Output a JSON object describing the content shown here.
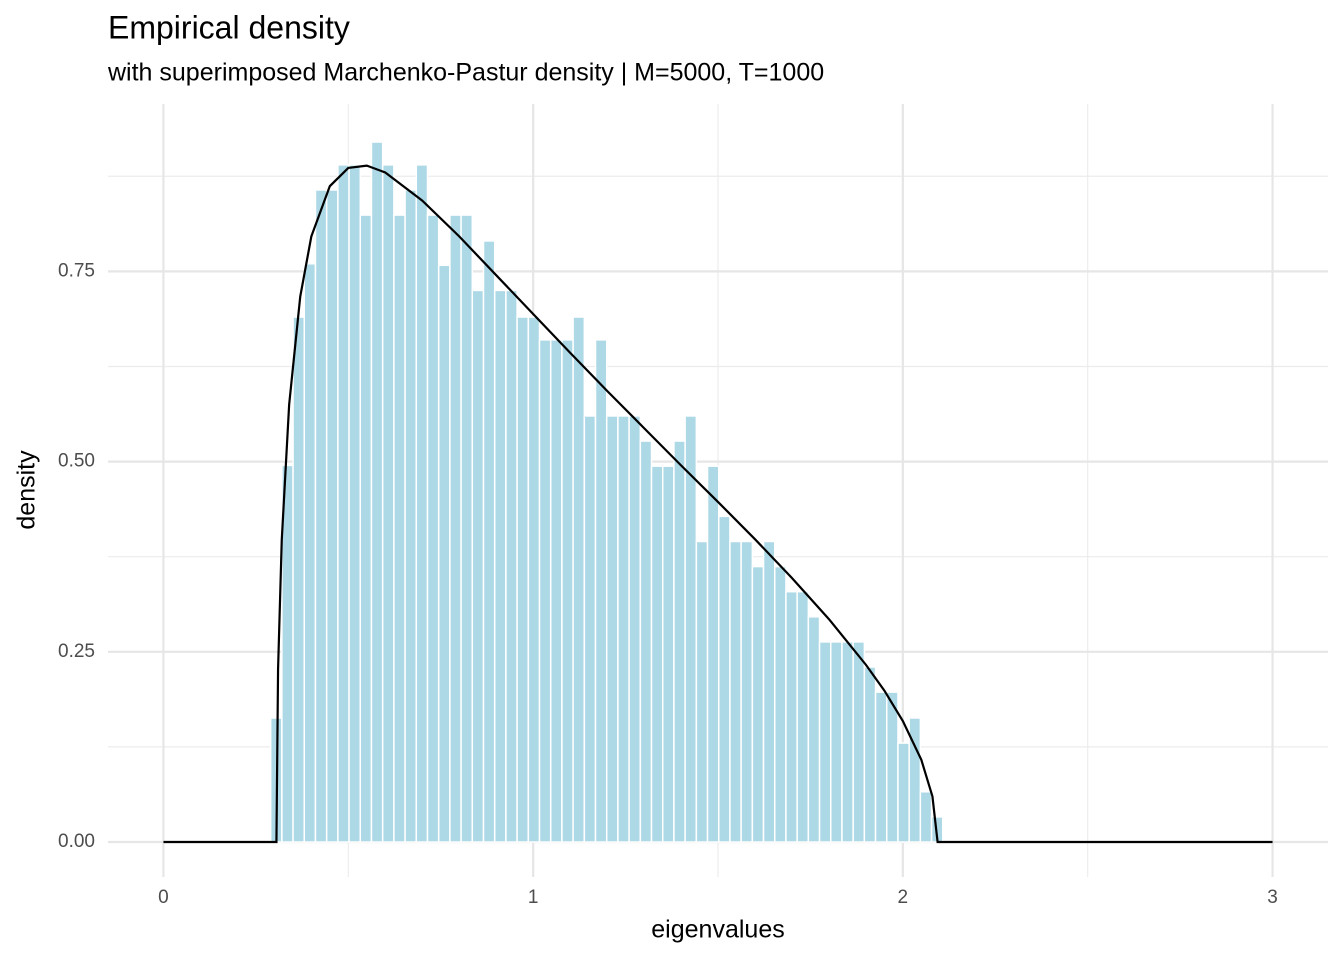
{
  "chart_data": {
    "type": "histogram",
    "title": "Empirical density",
    "subtitle": "with superimposed Marchenko-Pastur density | M=5000, T=1000",
    "x_label": "eigenvalues",
    "y_label": "density",
    "bins": [
      0.29,
      0.3203,
      0.3506,
      0.3809,
      0.4112,
      0.4415,
      0.4718,
      0.5021,
      0.5324,
      0.5627,
      0.593,
      0.6233,
      0.6536,
      0.6839,
      0.7142,
      0.7445,
      0.7748,
      0.8051,
      0.8354,
      0.8657,
      0.896,
      0.9263,
      0.9566,
      0.9869,
      1.0172,
      1.0475,
      1.0778,
      1.1081,
      1.1384,
      1.1687,
      1.199,
      1.2293,
      1.2596,
      1.2899,
      1.3202,
      1.3505,
      1.3808,
      1.4111,
      1.4414,
      1.4717,
      1.502,
      1.5323,
      1.5626,
      1.5929,
      1.6232,
      1.6535,
      1.6838,
      1.7141,
      1.7444,
      1.7747,
      1.805,
      1.8353,
      1.8656,
      1.8959,
      1.9262,
      1.9565,
      1.9868,
      2.0171,
      2.0474,
      2.0777,
      2.108
    ],
    "values": [
      0.163,
      0.495,
      0.69,
      0.76,
      0.857,
      0.857,
      0.89,
      0.89,
      0.824,
      0.92,
      0.89,
      0.824,
      0.857,
      0.89,
      0.824,
      0.758,
      0.824,
      0.824,
      0.725,
      0.79,
      0.725,
      0.725,
      0.69,
      0.69,
      0.66,
      0.66,
      0.66,
      0.69,
      0.56,
      0.66,
      0.56,
      0.56,
      0.56,
      0.527,
      0.494,
      0.494,
      0.527,
      0.56,
      0.395,
      0.494,
      0.428,
      0.395,
      0.395,
      0.362,
      0.395,
      0.362,
      0.329,
      0.329,
      0.296,
      0.263,
      0.263,
      0.263,
      0.263,
      0.23,
      0.197,
      0.197,
      0.13,
      0.163,
      0.066,
      0.033
    ],
    "color": "#add8e6",
    "overlay": {
      "type": "line",
      "color": "#000000",
      "x": [
        0,
        0.3056,
        0.31,
        0.32,
        0.34,
        0.37,
        0.4,
        0.45,
        0.5,
        0.55,
        0.6,
        0.7,
        0.8,
        0.9,
        1.0,
        1.1,
        1.2,
        1.3,
        1.4,
        1.5,
        1.6,
        1.7,
        1.8,
        1.9,
        1.95,
        2.0,
        2.05,
        2.08,
        2.094,
        3
      ],
      "values": [
        0,
        0,
        0.227,
        0.397,
        0.575,
        0.717,
        0.796,
        0.862,
        0.886,
        0.889,
        0.88,
        0.843,
        0.796,
        0.745,
        0.694,
        0.643,
        0.593,
        0.544,
        0.495,
        0.447,
        0.398,
        0.347,
        0.293,
        0.233,
        0.199,
        0.159,
        0.108,
        0.06,
        0,
        0
      ]
    },
    "xlim": [
      -0.15,
      3.15
    ],
    "ylim": [
      -0.046,
      0.97
    ],
    "xticks": [
      0,
      1,
      2,
      3
    ],
    "yticks": [
      {
        "value": 0,
        "label": "0.00"
      },
      {
        "value": 0.25,
        "label": "0.25"
      },
      {
        "value": 0.5,
        "label": "0.50"
      },
      {
        "value": 0.75,
        "label": "0.75"
      }
    ],
    "xminor": [
      0.5,
      1.5,
      2.5
    ],
    "yminor": [
      0.125,
      0.375,
      0.625,
      0.875
    ],
    "grid": true
  }
}
